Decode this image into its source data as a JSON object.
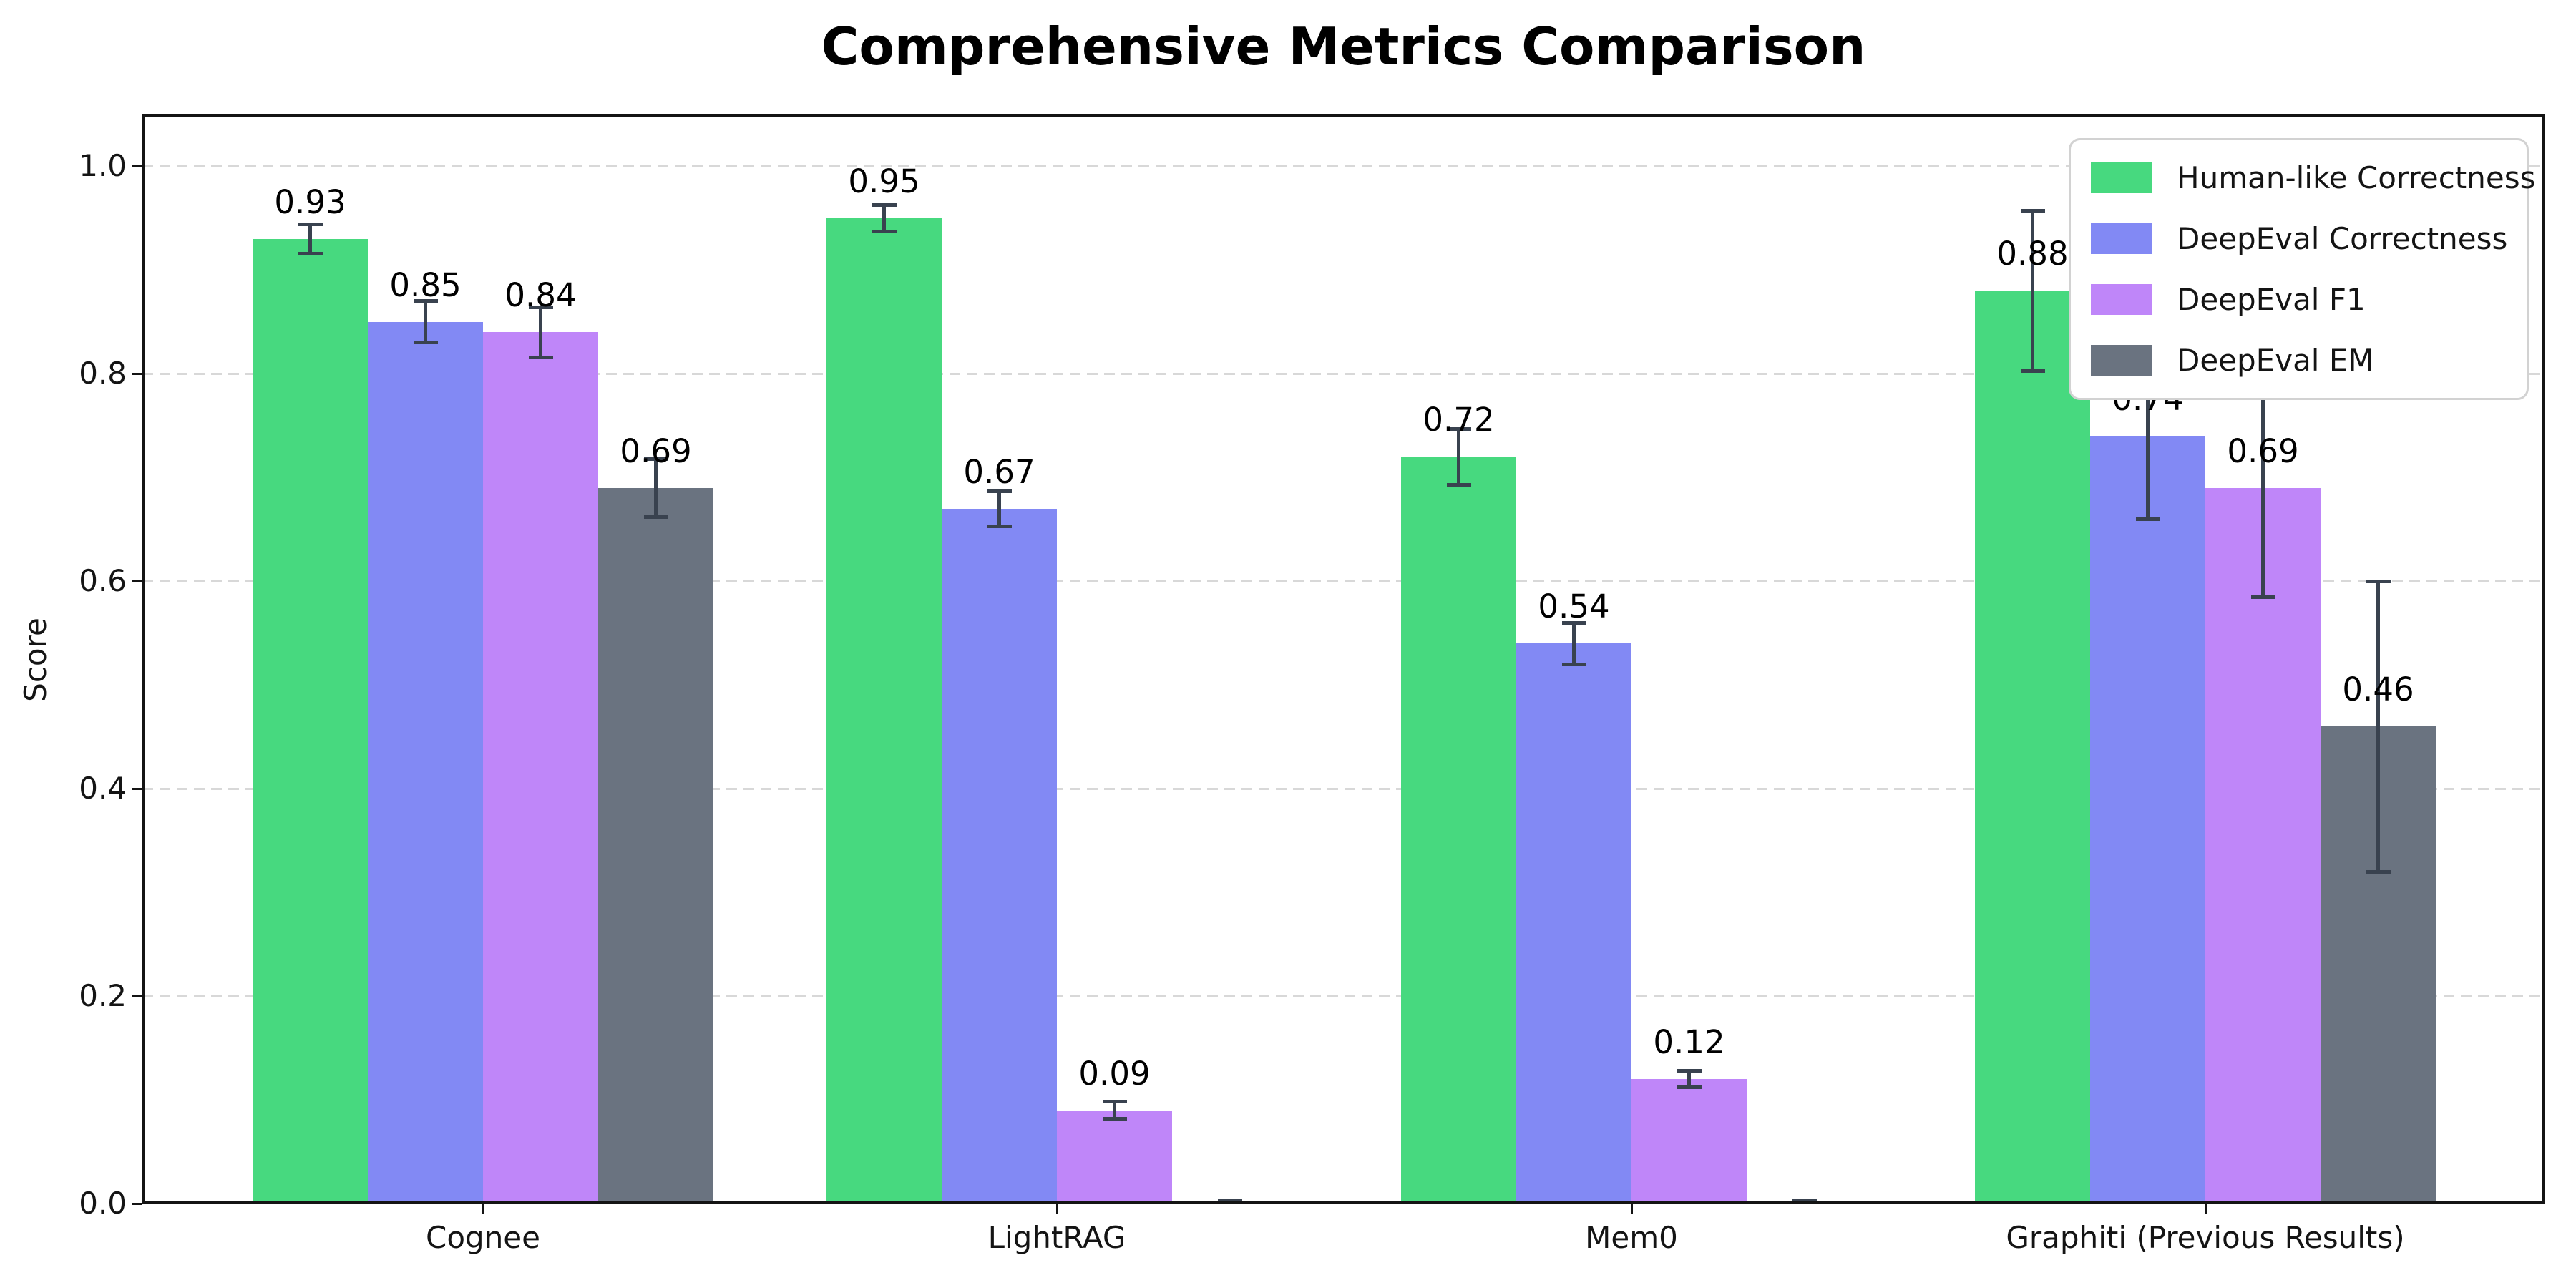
{
  "title": "Comprehensive Metrics Comparison",
  "chart_data": {
    "type": "bar",
    "title": "Comprehensive Metrics Comparison",
    "xlabel": "",
    "ylabel": "Score",
    "categories": [
      "Cognee",
      "LightRAG",
      "Mem0",
      "Graphiti (Previous Results)"
    ],
    "series": [
      {
        "name": "Human-like Correctness",
        "color": "#47d97f",
        "values": [
          0.93,
          0.95,
          0.72,
          0.88
        ],
        "errors": [
          0.014,
          0.013,
          0.027,
          0.077
        ],
        "labels": [
          "0.93",
          "0.95",
          "0.72",
          "0.88"
        ]
      },
      {
        "name": "DeepEval Correctness",
        "color": "#8289f4",
        "values": [
          0.85,
          0.67,
          0.54,
          0.74
        ],
        "errors": [
          0.02,
          0.017,
          0.02,
          0.08
        ],
        "labels": [
          "0.85",
          "0.67",
          "0.54",
          "0.74"
        ]
      },
      {
        "name": "DeepEval F1",
        "color": "#bf86f9",
        "values": [
          0.84,
          0.09,
          0.12,
          0.69
        ],
        "errors": [
          0.024,
          0.008,
          0.008,
          0.105
        ],
        "labels": [
          "0.84",
          "0.09",
          "0.12",
          "0.69"
        ]
      },
      {
        "name": "DeepEval EM",
        "color": "#6a7380",
        "values": [
          0.69,
          0.0,
          0.0,
          0.46
        ],
        "errors": [
          0.028,
          0.003,
          0.003,
          0.14
        ],
        "labels": [
          "0.69",
          "",
          "",
          "0.46"
        ]
      }
    ],
    "yticks": [
      "0.0",
      "0.2",
      "0.4",
      "0.6",
      "0.8",
      "1.0"
    ],
    "ylim": [
      0,
      1.05
    ],
    "grid": "dashed-horizontal",
    "legend_position": "upper-right",
    "colors": {
      "error_bar": "#39424f",
      "gridline": "#d8d8d8",
      "spine": "#141414",
      "background": "#ffffff"
    }
  }
}
